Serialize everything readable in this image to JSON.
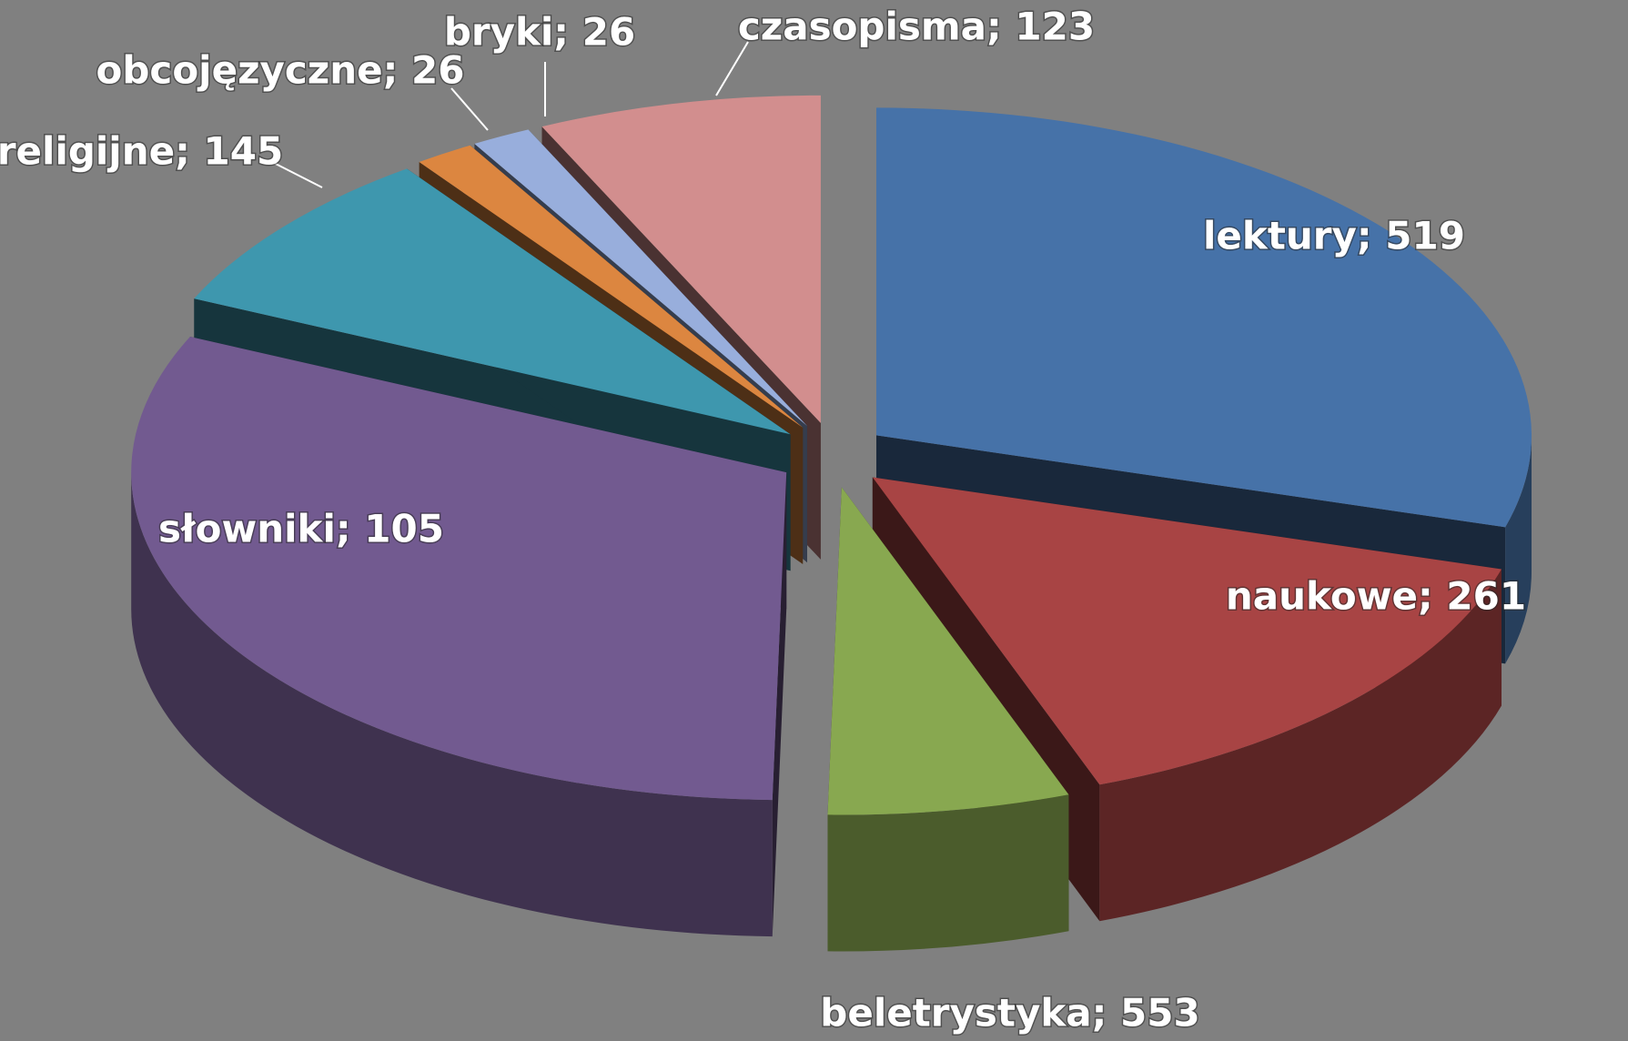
{
  "chart_data": {
    "type": "pie3d",
    "values": [
      519,
      261,
      105,
      553,
      145,
      26,
      26,
      123
    ],
    "value_labels": [
      "lektury; 519",
      "naukowe; 261",
      "słowniki; 105",
      "beletrystyka; 553",
      "religijne; 145",
      "obcojęzyczne; 26",
      "bryki; 26",
      "czasopisma; 123"
    ],
    "colors": [
      "#4672a8",
      "#a84444",
      "#88a850",
      "#725a90",
      "#3e97ae",
      "#dc8640",
      "#98aedc",
      "#d28e8e"
    ]
  }
}
